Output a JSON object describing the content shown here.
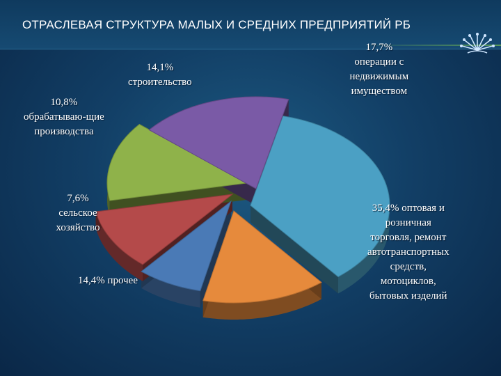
{
  "title": "ОТРАСЛЕВАЯ СТРУКТУРА МАЛЫХ И СРЕДНИХ ПРЕДПРИЯТИЙ РБ",
  "chart_data": {
    "type": "pie",
    "title": "ОТРАСЛЕВАЯ СТРУКТУРА МАЛЫХ И СРЕДНИХ ПРЕДПРИЯТИЙ РБ",
    "unit": "%",
    "slices": [
      {
        "name": "оптовая и розничная торговля, ремонт автотранспортных средств, мотоциклов, бытовых изделий",
        "value": 35.4,
        "color": "#4ba0c4",
        "label_lines": [
          "35,4% оптовая и",
          "розничная",
          "торговля, ремонт",
          "автотранспортных",
          "средств,",
          "мотоциклов,",
          "бытовых изделий"
        ]
      },
      {
        "name": "прочее",
        "value": 14.4,
        "color": "#e68a3c",
        "label_lines": [
          "14,4% прочее"
        ]
      },
      {
        "name": "сельское хозяйство",
        "value": 7.6,
        "color": "#4a7ab6",
        "label_lines": [
          "7,6%",
          "сельское",
          "хозяйство"
        ]
      },
      {
        "name": "обрабатываю-щие производства",
        "value": 10.8,
        "color": "#b44a4a",
        "label_lines": [
          "10,8%",
          "обрабатываю-щие",
          "производства"
        ]
      },
      {
        "name": "строительство",
        "value": 14.1,
        "color": "#8fb24a",
        "label_lines": [
          "14,1%",
          "строительство"
        ]
      },
      {
        "name": "операции с недвижимым имуществом",
        "value": 17.7,
        "color": "#7a5aa6",
        "label_lines": [
          "17,7%",
          "операции с",
          "недвижимым",
          "имуществом"
        ]
      }
    ]
  }
}
